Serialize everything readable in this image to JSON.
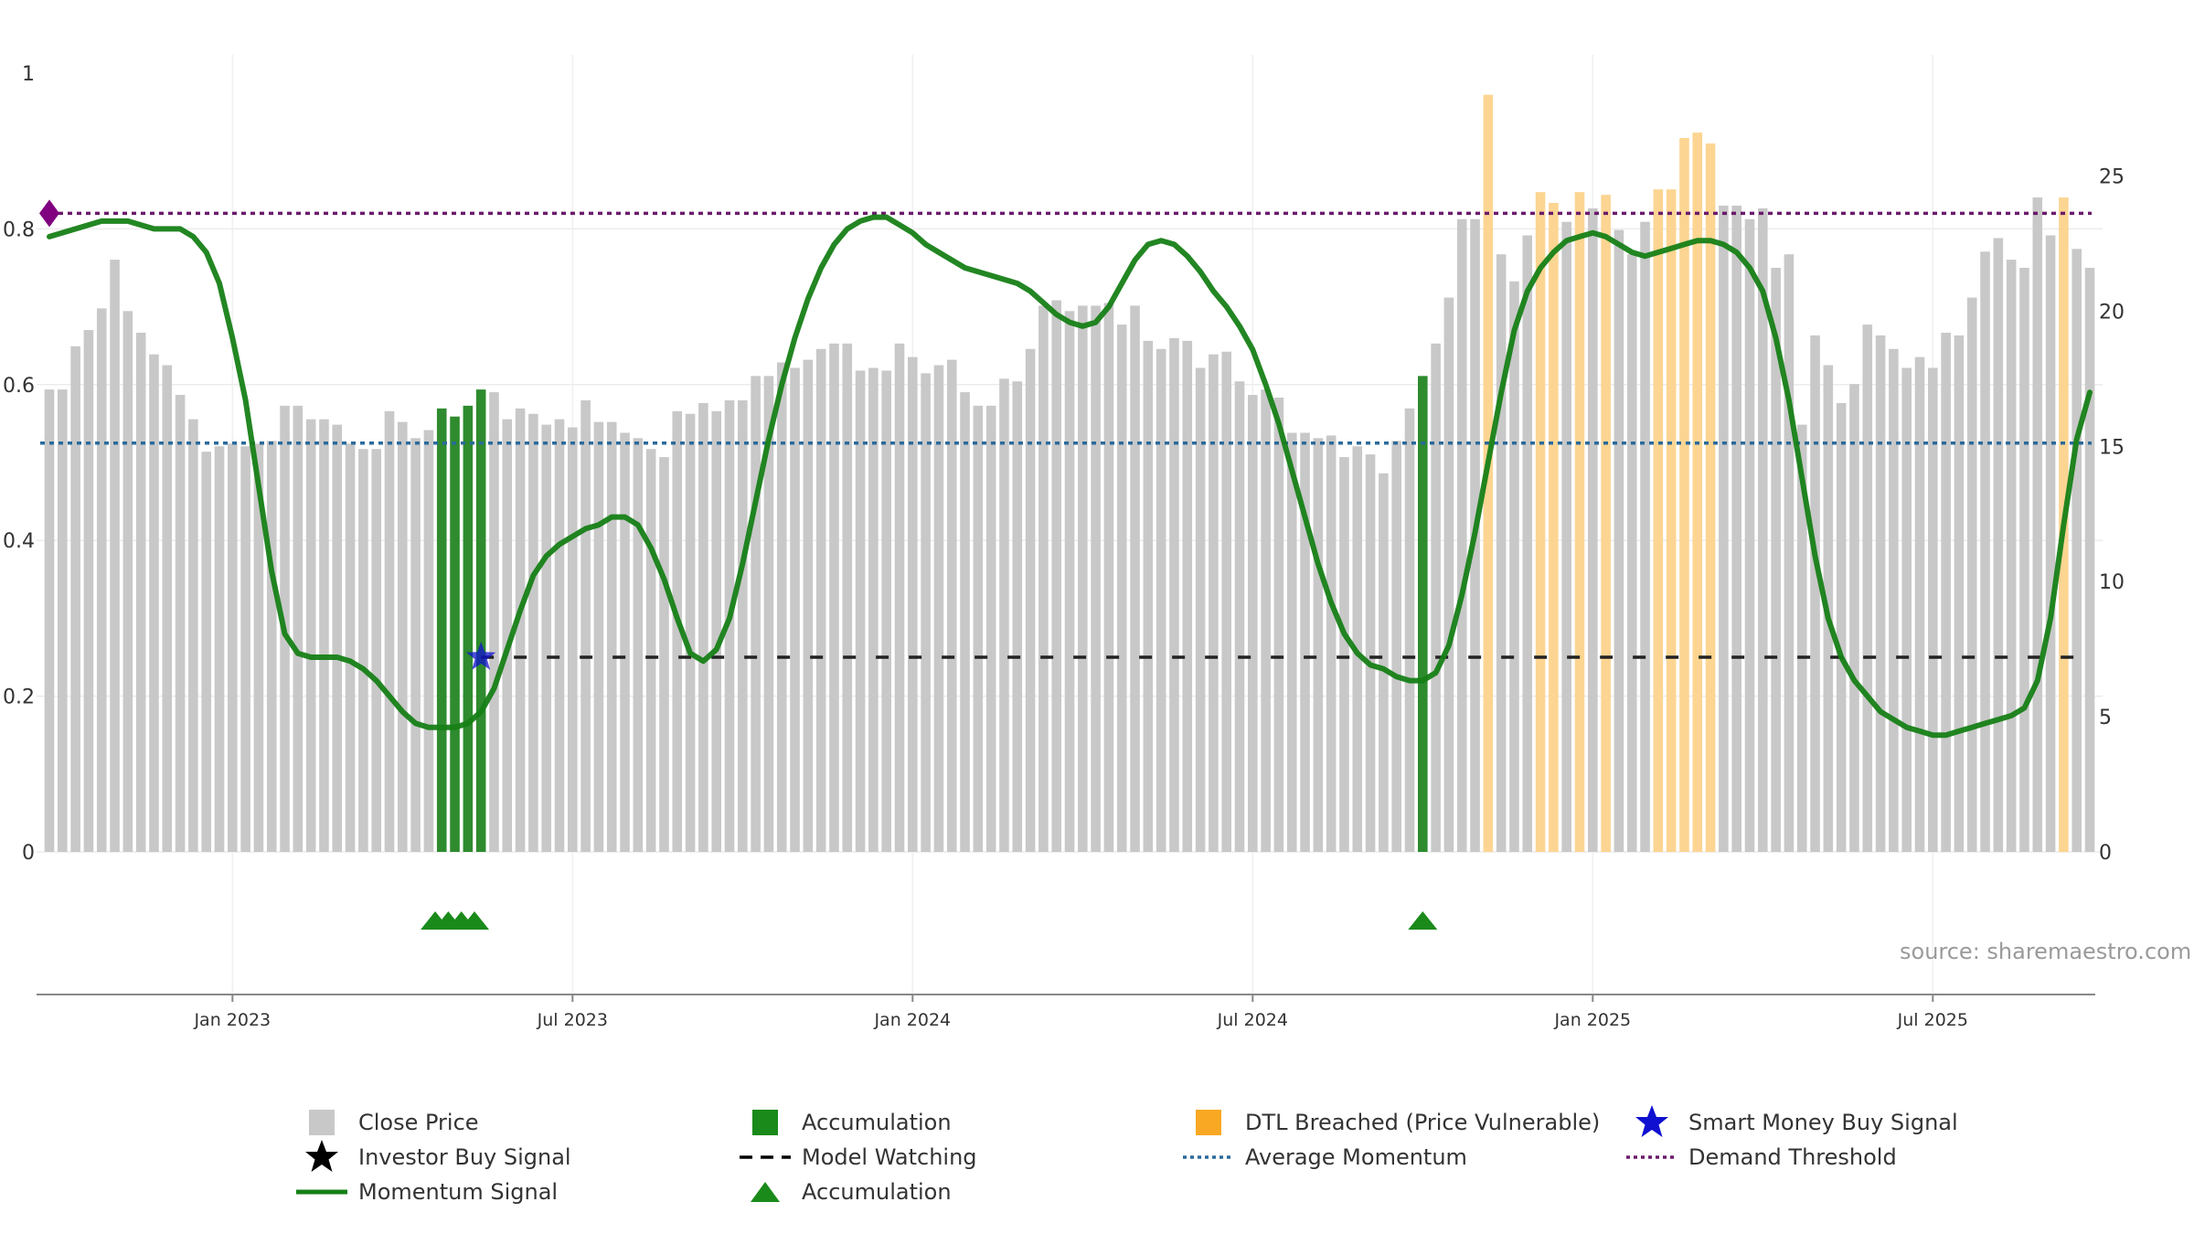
{
  "chart_data": {
    "type": "bar+line",
    "title": "",
    "source_note": "source: sharemaestro.com",
    "left_axis": {
      "range": [
        0,
        1
      ],
      "ticks": [
        0,
        0.2,
        0.4,
        0.6,
        0.8
      ],
      "tick_labels": [
        "0",
        "0.2",
        "0.4",
        "0.6",
        "0.8"
      ],
      "top_label": "1"
    },
    "right_axis": {
      "range": [
        0,
        28.8
      ],
      "ticks": [
        0,
        5,
        10,
        15,
        20,
        25
      ],
      "tick_labels": [
        "0",
        "5",
        "10",
        "15",
        "20",
        "25"
      ]
    },
    "x_axis": {
      "week_range": [
        0,
        156
      ],
      "ticks": [
        {
          "week": 14,
          "label": "Jan 2023"
        },
        {
          "week": 40,
          "label": "Jul 2023"
        },
        {
          "week": 66,
          "label": "Jan 2024"
        },
        {
          "week": 92,
          "label": "Jul 2024"
        },
        {
          "week": 118,
          "label": "Jan 2025"
        },
        {
          "week": 144,
          "label": "Jul 2025"
        }
      ]
    },
    "close_price": [
      17.1,
      17.1,
      18.7,
      19.3,
      20.1,
      21.9,
      20.0,
      19.2,
      18.4,
      18.0,
      16.9,
      16.0,
      14.8,
      15.0,
      15.1,
      15.0,
      15.1,
      15.2,
      16.5,
      16.5,
      16.0,
      16.0,
      15.8,
      15.1,
      14.9,
      14.9,
      16.3,
      15.9,
      15.3,
      15.6,
      16.4,
      16.1,
      16.5,
      17.1,
      17.0,
      16.0,
      16.4,
      16.2,
      15.8,
      16.0,
      15.7,
      16.7,
      15.9,
      15.9,
      15.5,
      15.3,
      14.9,
      14.6,
      16.3,
      16.2,
      16.6,
      16.3,
      16.7,
      16.7,
      17.6,
      17.6,
      18.1,
      17.9,
      18.2,
      18.6,
      18.8,
      18.8,
      17.8,
      17.9,
      17.8,
      18.8,
      18.3,
      17.7,
      18.0,
      18.2,
      17.0,
      16.5,
      16.5,
      17.5,
      17.4,
      18.6,
      20.2,
      20.4,
      20.0,
      20.2,
      20.2,
      20.3,
      19.5,
      20.2,
      18.9,
      18.6,
      19.0,
      18.9,
      17.9,
      18.4,
      18.5,
      17.4,
      16.9,
      17.1,
      16.8,
      15.5,
      15.5,
      15.3,
      15.4,
      14.6,
      15.0,
      14.7,
      14.0,
      15.2,
      16.4,
      17.6,
      18.8,
      20.5,
      23.4,
      23.4,
      28.0,
      22.1,
      21.1,
      22.8,
      24.4,
      24.0,
      23.3,
      24.4,
      23.8,
      24.3,
      23.0,
      22.1,
      23.3,
      24.5,
      24.5,
      26.4,
      26.6,
      26.2,
      23.9,
      23.9,
      23.4,
      23.8,
      21.6,
      22.1,
      15.8,
      19.1,
      18.0,
      16.6,
      17.3,
      19.5,
      19.1,
      18.6,
      17.9,
      18.3,
      17.9,
      19.2,
      19.1,
      20.5,
      22.2,
      22.7,
      21.9,
      21.6,
      24.2,
      22.8,
      24.2,
      22.3,
      21.6
    ],
    "accumulation_weeks": [
      30,
      31,
      32,
      33,
      105
    ],
    "dtl_breached_weeks": [
      110,
      114,
      115,
      117,
      119,
      123,
      124,
      125,
      126,
      127,
      154
    ],
    "momentum_signal": [
      [
        0,
        0.79
      ],
      [
        2,
        0.8
      ],
      [
        4,
        0.81
      ],
      [
        6,
        0.81
      ],
      [
        8,
        0.8
      ],
      [
        10,
        0.8
      ],
      [
        11,
        0.79
      ],
      [
        12,
        0.77
      ],
      [
        13,
        0.73
      ],
      [
        14,
        0.66
      ],
      [
        15,
        0.58
      ],
      [
        16,
        0.47
      ],
      [
        17,
        0.36
      ],
      [
        18,
        0.28
      ],
      [
        19,
        0.255
      ],
      [
        20,
        0.25
      ],
      [
        22,
        0.25
      ],
      [
        23,
        0.245
      ],
      [
        24,
        0.235
      ],
      [
        25,
        0.22
      ],
      [
        26,
        0.2
      ],
      [
        27,
        0.18
      ],
      [
        28,
        0.165
      ],
      [
        29,
        0.16
      ],
      [
        31,
        0.16
      ],
      [
        32,
        0.165
      ],
      [
        33,
        0.18
      ],
      [
        34,
        0.21
      ],
      [
        35,
        0.26
      ],
      [
        36,
        0.31
      ],
      [
        37,
        0.355
      ],
      [
        38,
        0.38
      ],
      [
        39,
        0.395
      ],
      [
        40,
        0.405
      ],
      [
        41,
        0.415
      ],
      [
        42,
        0.42
      ],
      [
        43,
        0.43
      ],
      [
        44,
        0.43
      ],
      [
        45,
        0.42
      ],
      [
        46,
        0.39
      ],
      [
        47,
        0.35
      ],
      [
        48,
        0.3
      ],
      [
        49,
        0.255
      ],
      [
        50,
        0.245
      ],
      [
        51,
        0.26
      ],
      [
        52,
        0.3
      ],
      [
        53,
        0.37
      ],
      [
        54,
        0.45
      ],
      [
        55,
        0.53
      ],
      [
        56,
        0.6
      ],
      [
        57,
        0.66
      ],
      [
        58,
        0.71
      ],
      [
        59,
        0.75
      ],
      [
        60,
        0.78
      ],
      [
        61,
        0.8
      ],
      [
        62,
        0.81
      ],
      [
        63,
        0.815
      ],
      [
        64,
        0.815
      ],
      [
        65,
        0.805
      ],
      [
        66,
        0.795
      ],
      [
        67,
        0.78
      ],
      [
        68,
        0.77
      ],
      [
        69,
        0.76
      ],
      [
        70,
        0.75
      ],
      [
        72,
        0.74
      ],
      [
        74,
        0.73
      ],
      [
        75,
        0.72
      ],
      [
        76,
        0.705
      ],
      [
        77,
        0.69
      ],
      [
        78,
        0.68
      ],
      [
        79,
        0.675
      ],
      [
        80,
        0.68
      ],
      [
        81,
        0.7
      ],
      [
        82,
        0.73
      ],
      [
        83,
        0.76
      ],
      [
        84,
        0.78
      ],
      [
        85,
        0.785
      ],
      [
        86,
        0.78
      ],
      [
        87,
        0.765
      ],
      [
        88,
        0.745
      ],
      [
        89,
        0.72
      ],
      [
        90,
        0.7
      ],
      [
        91,
        0.675
      ],
      [
        92,
        0.645
      ],
      [
        93,
        0.6
      ],
      [
        94,
        0.55
      ],
      [
        95,
        0.49
      ],
      [
        96,
        0.43
      ],
      [
        97,
        0.37
      ],
      [
        98,
        0.32
      ],
      [
        99,
        0.28
      ],
      [
        100,
        0.255
      ],
      [
        101,
        0.24
      ],
      [
        102,
        0.235
      ],
      [
        103,
        0.225
      ],
      [
        104,
        0.22
      ],
      [
        105,
        0.22
      ],
      [
        106,
        0.23
      ],
      [
        107,
        0.265
      ],
      [
        108,
        0.33
      ],
      [
        109,
        0.41
      ],
      [
        110,
        0.5
      ],
      [
        111,
        0.59
      ],
      [
        112,
        0.67
      ],
      [
        113,
        0.72
      ],
      [
        114,
        0.75
      ],
      [
        115,
        0.77
      ],
      [
        116,
        0.785
      ],
      [
        117,
        0.79
      ],
      [
        118,
        0.795
      ],
      [
        119,
        0.79
      ],
      [
        120,
        0.78
      ],
      [
        121,
        0.77
      ],
      [
        122,
        0.765
      ],
      [
        123,
        0.77
      ],
      [
        124,
        0.775
      ],
      [
        125,
        0.78
      ],
      [
        126,
        0.785
      ],
      [
        127,
        0.785
      ],
      [
        128,
        0.78
      ],
      [
        129,
        0.77
      ],
      [
        130,
        0.75
      ],
      [
        131,
        0.72
      ],
      [
        132,
        0.66
      ],
      [
        133,
        0.58
      ],
      [
        134,
        0.48
      ],
      [
        135,
        0.38
      ],
      [
        136,
        0.3
      ],
      [
        137,
        0.25
      ],
      [
        138,
        0.22
      ],
      [
        139,
        0.2
      ],
      [
        140,
        0.18
      ],
      [
        141,
        0.17
      ],
      [
        142,
        0.16
      ],
      [
        143,
        0.155
      ],
      [
        144,
        0.15
      ],
      [
        145,
        0.15
      ],
      [
        146,
        0.155
      ],
      [
        147,
        0.16
      ],
      [
        148,
        0.165
      ],
      [
        149,
        0.17
      ],
      [
        150,
        0.175
      ],
      [
        151,
        0.185
      ],
      [
        152,
        0.22
      ],
      [
        153,
        0.3
      ],
      [
        154,
        0.42
      ],
      [
        155,
        0.53
      ],
      [
        156,
        0.59
      ]
    ],
    "average_momentum": 0.525,
    "demand_threshold": 0.82,
    "model_watching": {
      "level": 0.25,
      "from_week": 33,
      "to_week": 156
    },
    "smart_money_buy_signal": {
      "week": 33,
      "value": 0.25
    },
    "threshold_marker_week": 0,
    "accumulation_triangle_weeks": [
      29.5,
      30.5,
      31.5,
      32.5,
      105
    ],
    "legend": [
      {
        "key": "close_price",
        "label": "Close Price"
      },
      {
        "key": "accumulation_bar",
        "label": "Accumulation"
      },
      {
        "key": "dtl_breached",
        "label": "DTL Breached (Price Vulnerable)"
      },
      {
        "key": "smart_money",
        "label": "Smart Money Buy Signal"
      },
      {
        "key": "investor_buy",
        "label": "Investor Buy Signal"
      },
      {
        "key": "model_watching",
        "label": "Model Watching"
      },
      {
        "key": "average_momentum",
        "label": "Average Momentum"
      },
      {
        "key": "demand_threshold",
        "label": "Demand Threshold"
      },
      {
        "key": "momentum_signal",
        "label": "Momentum Signal"
      },
      {
        "key": "accumulation_marker",
        "label": "Accumulation"
      }
    ],
    "colors": {
      "close_price": "#c8c8c8",
      "accumulation": "#2e8b2e",
      "dtl_breached": "#fcd592",
      "momentum": "#168016",
      "average_momentum": "#2b6a9b",
      "demand_threshold": "#6b1a6b",
      "model_watching": "#222222",
      "smart_money": "#1010d0",
      "threshold_marker": "#800080",
      "triangle": "#1a8a1a"
    }
  }
}
